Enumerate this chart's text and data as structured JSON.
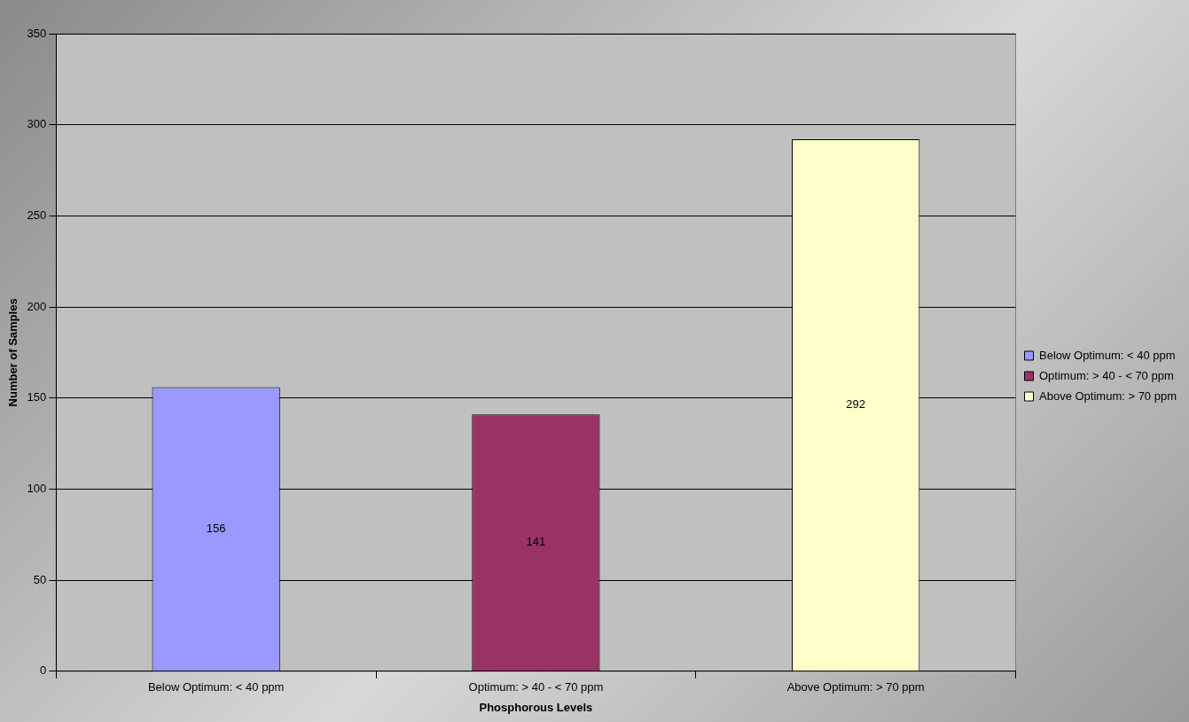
{
  "chart_data": {
    "type": "bar",
    "xlabel": "Phosphorous Levels",
    "ylabel": "Number of Samples",
    "categories": [
      "Below Optimum: < 40 ppm",
      "Optimum: > 40 - < 70 ppm",
      "Above Optimum: > 70 ppm"
    ],
    "series": [
      {
        "name": "Below Optimum: < 40 ppm",
        "color": "#9999ff",
        "values": [
          156,
          null,
          null
        ]
      },
      {
        "name": "Optimum: > 40 - < 70 ppm",
        "color": "#993366",
        "values": [
          null,
          141,
          null
        ]
      },
      {
        "name": "Above Optimum: > 70 ppm",
        "color": "#ffffcc",
        "values": [
          null,
          null,
          292
        ]
      }
    ],
    "ylim": [
      0,
      350
    ],
    "yticks": [
      0,
      50,
      100,
      150,
      200,
      250,
      300,
      350
    ],
    "grid": "y",
    "legend": "right",
    "data_labels": true
  }
}
